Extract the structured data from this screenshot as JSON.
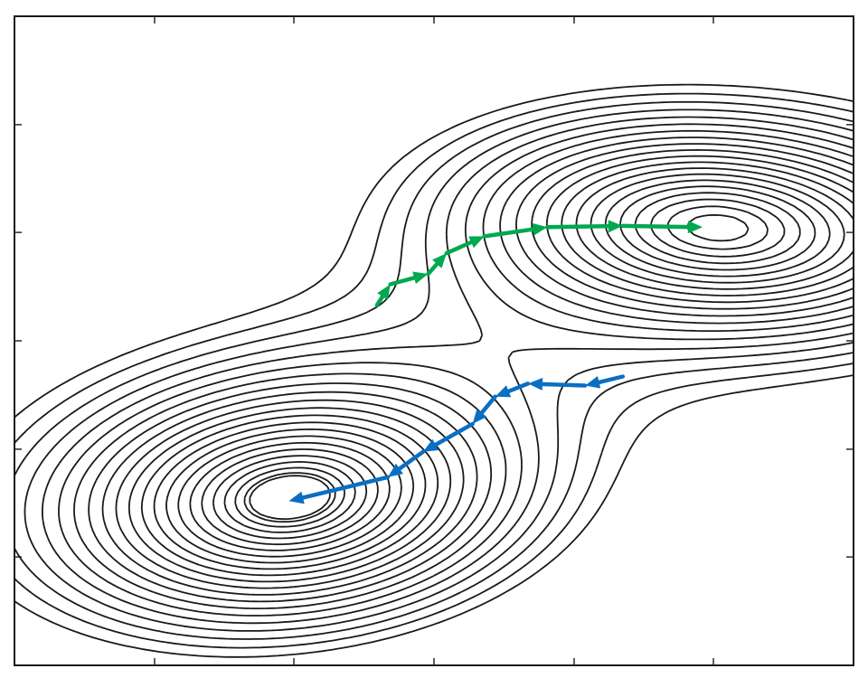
{
  "chart_data": {
    "type": "contour",
    "title": "",
    "xlabel": "",
    "ylabel": "",
    "xlim": [
      0,
      1
    ],
    "ylim": [
      0,
      1
    ],
    "grid": false,
    "legend": "none",
    "tick_labels": false,
    "x_ticks": [
      0.167,
      0.333,
      0.5,
      0.667,
      0.833
    ],
    "y_ticks": [
      0.167,
      0.333,
      0.5,
      0.667,
      0.833
    ],
    "minima": [
      {
        "name": "upper-minimum",
        "x": 0.84,
        "y": 0.68
      },
      {
        "name": "lower-minimum",
        "x": 0.33,
        "y": 0.25
      }
    ],
    "contour_levels": 22,
    "paths": [
      {
        "name": "green-descent-path",
        "color": "#00a84f",
        "points": [
          [
            0.432,
            0.555
          ],
          [
            0.448,
            0.587
          ],
          [
            0.493,
            0.603
          ],
          [
            0.515,
            0.635
          ],
          [
            0.56,
            0.661
          ],
          [
            0.635,
            0.675
          ],
          [
            0.725,
            0.677
          ],
          [
            0.82,
            0.675
          ]
        ]
      },
      {
        "name": "blue-descent-path",
        "color": "#0a6fc2",
        "points": [
          [
            0.725,
            0.445
          ],
          [
            0.68,
            0.431
          ],
          [
            0.612,
            0.434
          ],
          [
            0.573,
            0.414
          ],
          [
            0.546,
            0.372
          ],
          [
            0.487,
            0.329
          ],
          [
            0.445,
            0.29
          ],
          [
            0.327,
            0.253
          ]
        ]
      }
    ]
  }
}
